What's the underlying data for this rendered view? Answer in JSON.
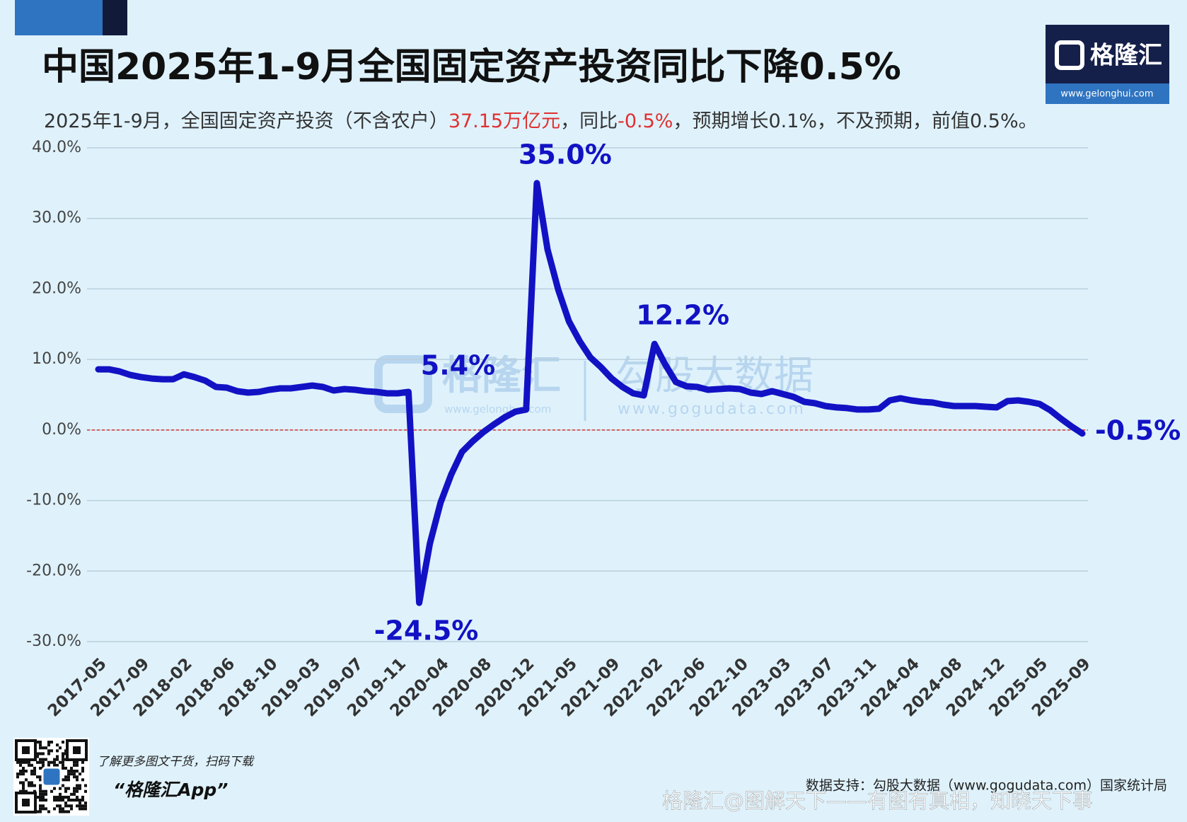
{
  "chart_data": {
    "type": "line",
    "title": "中国2025年1-9月全国固定资产投资同比下降0.5%",
    "subtitle": [
      "2025年1-9月，全国固定资产投资（不含农户）",
      "37.15万亿元",
      "，同比",
      "-0.5%",
      "，预期增长0.1%，不及预期，前值0.5%。"
    ],
    "categories": [
      "2017-05",
      null,
      null,
      null,
      "2017-09",
      null,
      null,
      null,
      "2018-02",
      null,
      null,
      null,
      "2018-06",
      null,
      null,
      null,
      "2018-10",
      null,
      null,
      null,
      "2019-03",
      null,
      null,
      null,
      "2019-07",
      null,
      null,
      null,
      "2019-11",
      null,
      null,
      null,
      "2020-04",
      null,
      null,
      null,
      "2020-08",
      null,
      null,
      null,
      "2020-12",
      null,
      null,
      null,
      "2021-05",
      null,
      null,
      null,
      "2021-09",
      null,
      null,
      null,
      "2022-02",
      null,
      null,
      null,
      "2022-06",
      null,
      null,
      null,
      "2022-10",
      null,
      null,
      null,
      "2023-03",
      null,
      null,
      null,
      "2023-07",
      null,
      null,
      null,
      "2023-11",
      null,
      null,
      null,
      "2024-04",
      null,
      null,
      null,
      "2024-08",
      null,
      null,
      null,
      "2024-12",
      null,
      null,
      null,
      "2025-05",
      null,
      null,
      null,
      "2025-09"
    ],
    "series": [
      {
        "color": "#1212c4",
        "values": [
          8.6,
          8.6,
          8.3,
          7.8,
          7.5,
          7.3,
          7.2,
          7.2,
          7.9,
          7.5,
          7.0,
          6.1,
          6.0,
          5.5,
          5.3,
          5.4,
          5.7,
          5.9,
          5.9,
          6.1,
          6.3,
          6.1,
          5.6,
          5.8,
          5.7,
          5.5,
          5.4,
          5.2,
          5.2,
          5.4,
          -24.5,
          -16.1,
          -10.3,
          -6.3,
          -3.1,
          -1.6,
          -0.3,
          0.8,
          1.8,
          2.6,
          2.9,
          35.0,
          25.6,
          19.9,
          15.4,
          12.6,
          10.3,
          8.9,
          7.3,
          6.1,
          5.2,
          4.9,
          12.2,
          9.3,
          6.8,
          6.2,
          6.1,
          5.7,
          5.8,
          5.9,
          5.8,
          5.3,
          5.1,
          5.5,
          5.1,
          4.7,
          4.0,
          3.8,
          3.4,
          3.2,
          3.1,
          2.9,
          2.9,
          3.0,
          4.2,
          4.5,
          4.2,
          4.0,
          3.9,
          3.6,
          3.4,
          3.4,
          3.4,
          3.3,
          3.2,
          4.1,
          4.2,
          4.0,
          3.7,
          2.8,
          1.6,
          0.5,
          -0.5
        ],
        "value_labels": [
          null,
          null,
          null,
          null,
          null,
          null,
          null,
          null,
          null,
          null,
          null,
          null,
          null,
          null,
          null,
          null,
          null,
          null,
          null,
          null,
          null,
          null,
          null,
          null,
          null,
          null,
          null,
          null,
          null,
          "5.4%",
          "-24.5%",
          null,
          null,
          null,
          null,
          null,
          null,
          null,
          null,
          null,
          null,
          "35.0%",
          null,
          null,
          null,
          null,
          null,
          null,
          null,
          null,
          null,
          null,
          "12.2%",
          null,
          null,
          null,
          null,
          null,
          null,
          null,
          null,
          null,
          null,
          null,
          null,
          null,
          null,
          null,
          null,
          null,
          null,
          null,
          null,
          null,
          null,
          null,
          null,
          null,
          null,
          null,
          null,
          null,
          null,
          null,
          null,
          null,
          null,
          null,
          null,
          null,
          null,
          null,
          "-0.5%"
        ]
      }
    ],
    "ylim": [
      -30,
      40
    ],
    "yticks": [
      {
        "value": -30,
        "label": "-30.0%"
      },
      {
        "value": -20,
        "label": "-20.0%"
      },
      {
        "value": -10,
        "label": "-10.0%"
      },
      {
        "value": 0,
        "label": "0.0%"
      },
      {
        "value": 10,
        "label": "10.0%"
      },
      {
        "value": 20,
        "label": "20.0%"
      },
      {
        "value": 30,
        "label": "30.0%"
      },
      {
        "value": 40,
        "label": "40.0%"
      }
    ],
    "grid": true,
    "zero_line_color": "#e03030"
  },
  "brand": {
    "name": "格隆汇",
    "url": "www.gelonghui.com"
  },
  "watermark": {
    "brand": "格隆汇",
    "brand_url": "www.gelonghui.com",
    "data": "勾股大数据",
    "data_url": "www.gogudata.com"
  },
  "footer": {
    "tip": "了解更多图文干货，扫码下载",
    "app": "“格隆汇App”",
    "source": "数据支持：勾股大数据（www.gogudata.com）国家统计局",
    "credit": "格隆汇@图解天下——有图有真相，知晓天下事"
  }
}
